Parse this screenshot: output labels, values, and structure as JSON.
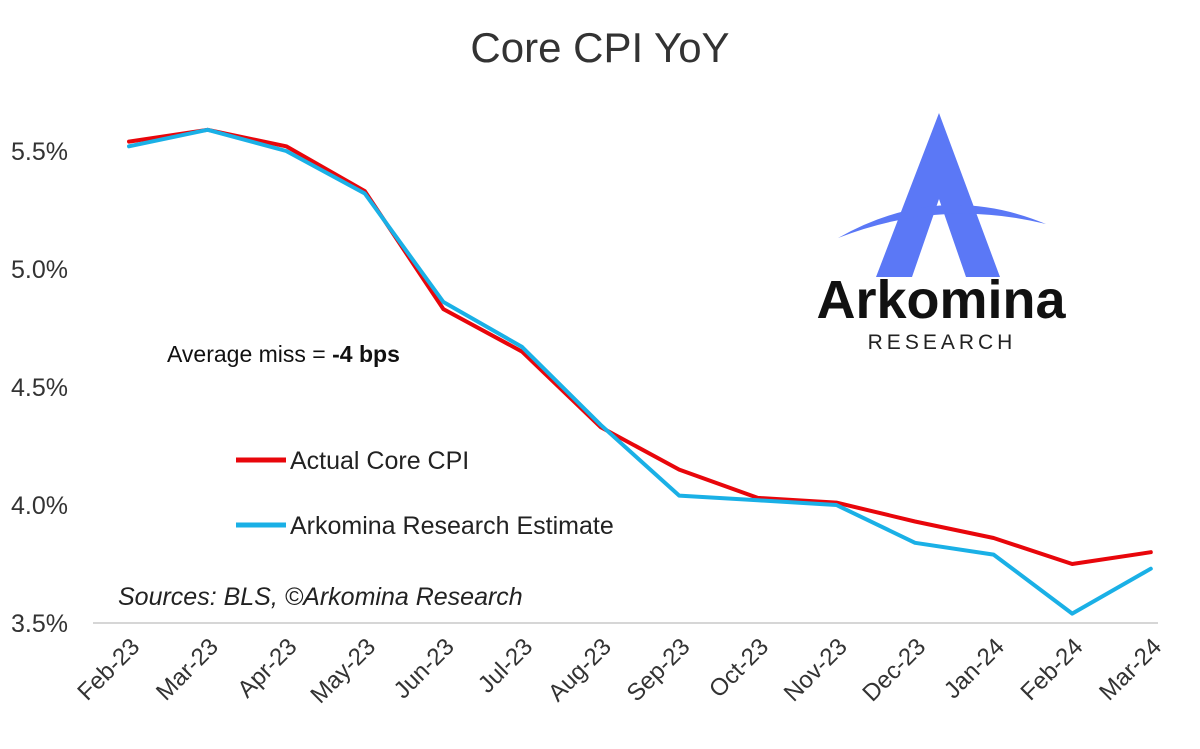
{
  "chart_data": {
    "type": "line",
    "title": "Core CPI YoY",
    "categories": [
      "Feb-23",
      "Mar-23",
      "Apr-23",
      "May-23",
      "Jun-23",
      "Jul-23",
      "Aug-23",
      "Sep-23",
      "Oct-23",
      "Nov-23",
      "Dec-23",
      "Jan-24",
      "Feb-24",
      "Mar-24"
    ],
    "series": [
      {
        "name": "Actual Core CPI",
        "color": "#e8060b",
        "values": [
          5.54,
          5.59,
          5.52,
          5.33,
          4.83,
          4.65,
          4.33,
          4.15,
          4.03,
          4.01,
          3.93,
          3.86,
          3.75,
          3.8
        ]
      },
      {
        "name": "Arkomina Research Estimate",
        "color": "#1ab0e6",
        "values": [
          5.52,
          5.59,
          5.5,
          5.32,
          4.86,
          4.67,
          4.34,
          4.04,
          4.02,
          4.0,
          3.84,
          3.79,
          3.54,
          3.73
        ]
      }
    ],
    "y_ticks": [
      "3.5%",
      "4.0%",
      "4.5%",
      "5.0%",
      "5.5%"
    ],
    "y_tick_values": [
      3.5,
      4.0,
      4.5,
      5.0,
      5.5
    ],
    "ylim": [
      3.5,
      5.75
    ],
    "grid": false,
    "legend_position": "center-left",
    "annotation_prefix": "Average miss = ",
    "annotation_value": "-4 bps",
    "source": "Sources: BLS, ©Arkomina Research"
  },
  "logo": {
    "name": "Arkomina",
    "subtitle": "RESEARCH",
    "color": "#5b78f6"
  }
}
